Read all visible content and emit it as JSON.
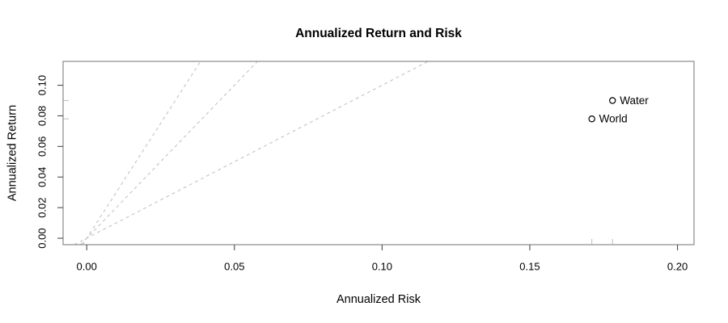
{
  "window": {
    "background": "#ffffff"
  },
  "chart_data": {
    "type": "scatter",
    "title": "Annualized Return and Risk",
    "xlabel": "Annualized Risk",
    "ylabel": "Annualized Return",
    "xlim": [
      -0.008,
      0.2056
    ],
    "ylim": [
      -0.0042,
      0.1156
    ],
    "grid": false,
    "legend": "none",
    "x_ticks": {
      "values": [
        0,
        0.05,
        0.1,
        0.15,
        0.2
      ],
      "labels": [
        "0.00",
        "0.05",
        "0.10",
        "0.15",
        "0.20"
      ]
    },
    "y_ticks": {
      "values": [
        0,
        0.02,
        0.04,
        0.06,
        0.08,
        0.1
      ],
      "labels": [
        "0.00",
        "0.02",
        "0.04",
        "0.06",
        "0.08",
        "0.10"
      ]
    },
    "reference_lines": [
      {
        "name": "sharpe-ratio-3",
        "slope": 3,
        "intercept": 0,
        "style": "dashed"
      },
      {
        "name": "sharpe-ratio-2",
        "slope": 2,
        "intercept": 0,
        "style": "dashed"
      },
      {
        "name": "sharpe-ratio-1",
        "slope": 1,
        "intercept": 0,
        "style": "dashed"
      }
    ],
    "series": [
      {
        "name": "Water",
        "x": 0.178,
        "y": 0.09
      },
      {
        "name": "World",
        "x": 0.171,
        "y": 0.078
      }
    ],
    "rug_marks": {
      "bottom_axis_x": [
        0.171,
        0.178
      ],
      "left_axis_y": [
        0.078,
        0.09
      ]
    },
    "colors": {
      "frame": "#8a8a8a",
      "tick": "#4d4d4d",
      "text": "#000000",
      "reference_line": "#c3c3c3",
      "point_stroke": "#000000",
      "point_fill": "#ffffff",
      "rug": "#c3c3c3"
    }
  }
}
